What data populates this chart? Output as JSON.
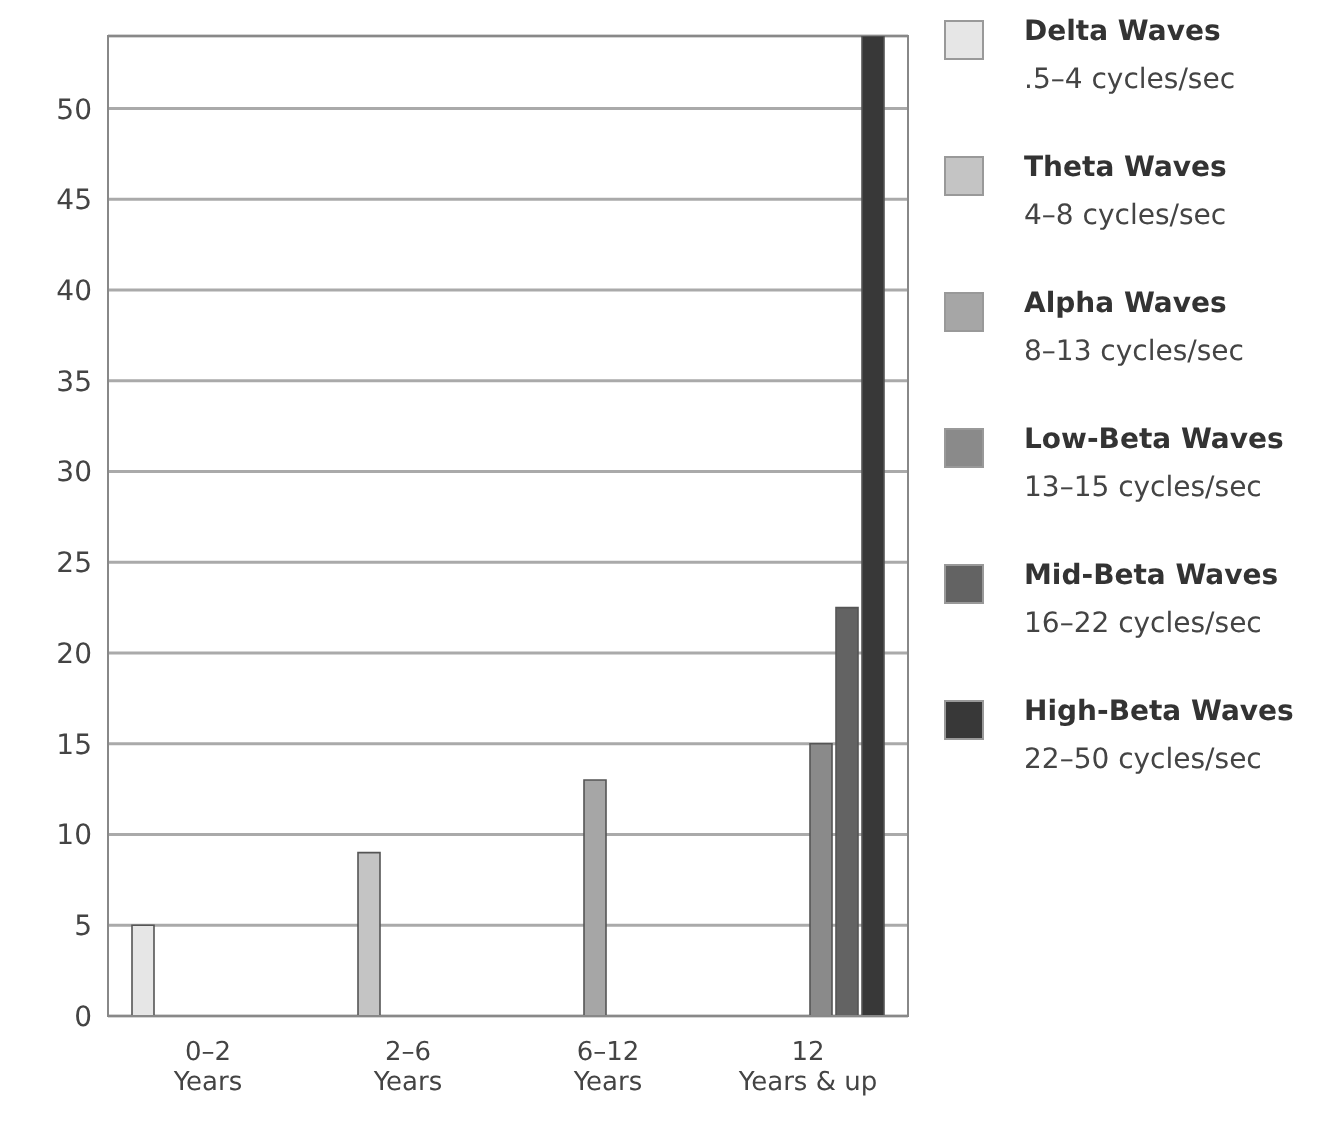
{
  "chart_data": {
    "type": "bar",
    "categories": [
      "0–2\nYears",
      "2–6\nYears",
      "6–12\nYears",
      "12\nYears & up"
    ],
    "series": [
      {
        "name": "Delta Waves\n.5–4 cycles/sec",
        "color": "#e6e6e6",
        "values": [
          5,
          null,
          null,
          null
        ]
      },
      {
        "name": "Theta Waves\n4–8 cycles/sec",
        "color": "#c4c4c4",
        "values": [
          null,
          9,
          null,
          null
        ]
      },
      {
        "name": "Alpha Waves\n8–13 cycles/sec",
        "color": "#a6a6a6",
        "values": [
          null,
          null,
          13,
          null
        ]
      },
      {
        "name": "Low-Beta Waves\n13–15 cycles/sec",
        "color": "#8a8a8a",
        "values": [
          null,
          null,
          null,
          15
        ]
      },
      {
        "name": "Mid-Beta Waves\n16–22 cycles/sec",
        "color": "#636363",
        "values": [
          null,
          null,
          null,
          22.5
        ]
      },
      {
        "name": "High-Beta Waves\n22–50 cycles/sec",
        "color": "#383838",
        "values": [
          null,
          null,
          null,
          54
        ]
      }
    ],
    "ylim": [
      0,
      54
    ],
    "yticks": [
      0,
      5,
      10,
      15,
      20,
      25,
      30,
      35,
      40,
      45,
      50
    ],
    "grid": "y",
    "legend": "right"
  }
}
